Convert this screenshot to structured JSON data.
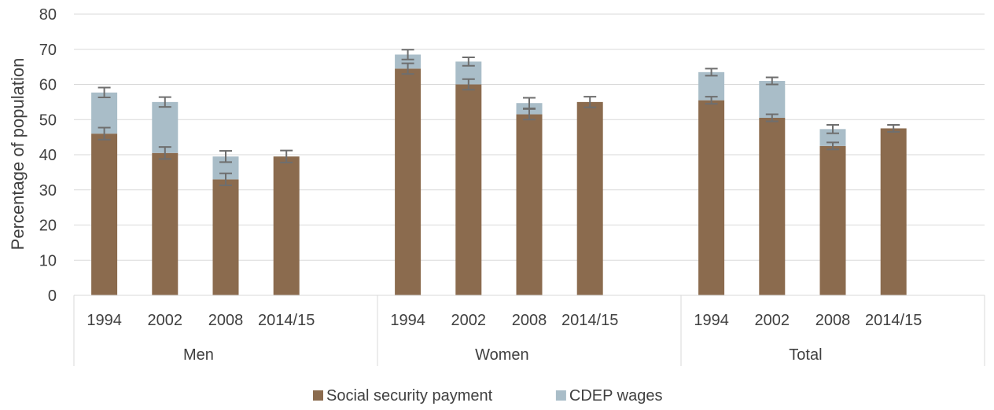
{
  "chart_data": {
    "type": "bar",
    "stacked": true,
    "ylabel": "Percentage of population",
    "ylim": [
      0,
      80
    ],
    "yticks": [
      0,
      10,
      20,
      30,
      40,
      50,
      60,
      70,
      80
    ],
    "grid": true,
    "legend_position": "bottom",
    "groups": [
      {
        "name": "Men",
        "categories": [
          "1994",
          "2002",
          "2008",
          "2014/15"
        ]
      },
      {
        "name": "Women",
        "categories": [
          "1994",
          "2002",
          "2008",
          "2014/15"
        ]
      },
      {
        "name": "Total",
        "categories": [
          "1994",
          "2002",
          "2008",
          "2014/15"
        ]
      }
    ],
    "series": [
      {
        "name": "Social security payment",
        "color": "#8B6B4E",
        "values": [
          [
            46,
            40.5,
            33,
            39.5
          ],
          [
            64.5,
            60,
            51.5,
            55
          ],
          [
            55.5,
            50.5,
            42.5,
            47.5
          ]
        ],
        "error": [
          [
            1.7,
            1.7,
            1.7,
            1.7
          ],
          [
            1.5,
            1.5,
            1.5,
            1.5
          ],
          [
            1,
            1,
            1,
            1
          ]
        ]
      },
      {
        "name": "CDEP wages",
        "color": "#A9BDC8",
        "values": [
          [
            11.7,
            14.5,
            6.5,
            0
          ],
          [
            4,
            6.5,
            3.2,
            0
          ],
          [
            8,
            10.5,
            4.8,
            0
          ]
        ],
        "error": [
          [
            1.4,
            1.4,
            1.6,
            0
          ],
          [
            1.4,
            1.2,
            1.5,
            0
          ],
          [
            1,
            1,
            1.2,
            0
          ]
        ]
      }
    ]
  }
}
